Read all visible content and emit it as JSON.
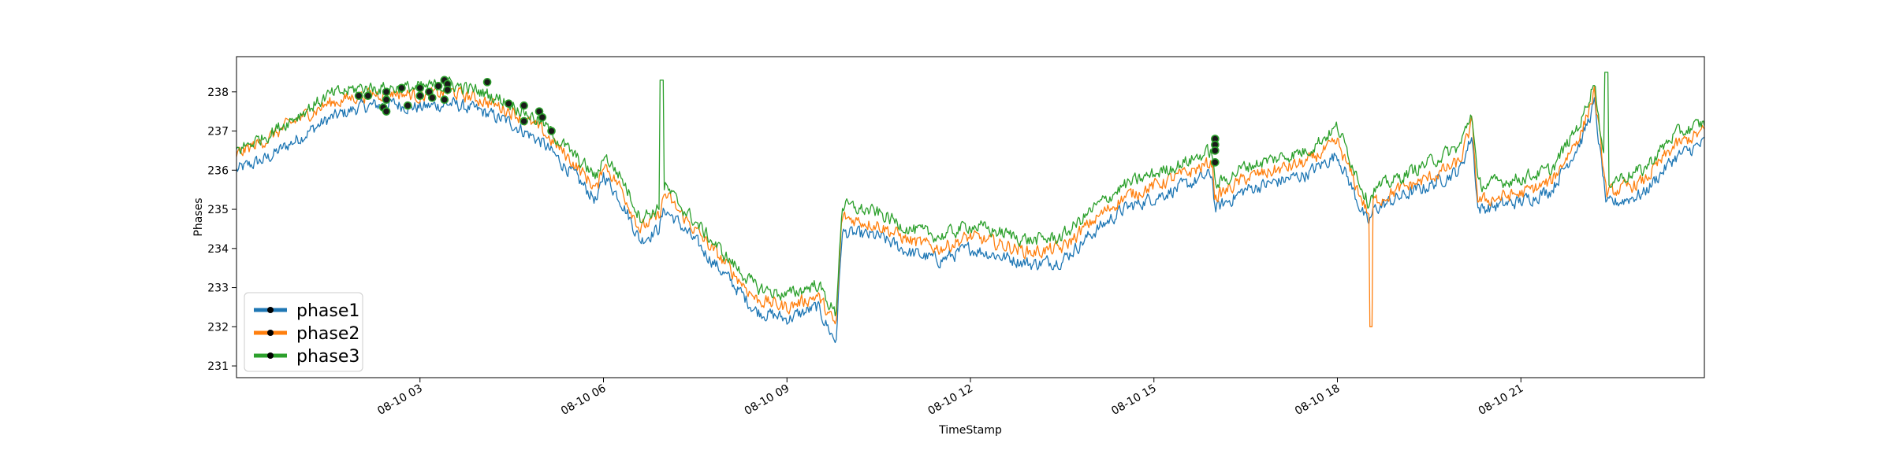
{
  "chart_data": {
    "type": "line",
    "title": "",
    "xlabel": "TimeStamp",
    "ylabel": "Phases",
    "x_start": "2020-08-10 00:00",
    "x_end": "2020-08-11 00:00",
    "xlim": [
      "2020-08-10 00:00",
      "2020-08-11 00:00"
    ],
    "ylim": [
      230.7,
      238.9
    ],
    "x_ticks": [
      {
        "value": "2020-08-10 03:00",
        "label": "08-10 03"
      },
      {
        "value": "2020-08-10 06:00",
        "label": "08-10 06"
      },
      {
        "value": "2020-08-10 09:00",
        "label": "08-10 09"
      },
      {
        "value": "2020-08-10 12:00",
        "label": "08-10 12"
      },
      {
        "value": "2020-08-10 15:00",
        "label": "08-10 15"
      },
      {
        "value": "2020-08-10 18:00",
        "label": "08-10 18"
      },
      {
        "value": "2020-08-10 21:00",
        "label": "08-10 21"
      }
    ],
    "y_ticks": [
      231,
      232,
      233,
      234,
      235,
      236,
      237,
      238
    ],
    "grid": false,
    "legend_position": "lower-left",
    "x_hours": [
      0,
      0.5,
      1,
      1.5,
      2,
      2.5,
      3,
      3.5,
      4,
      4.5,
      5,
      5.5,
      5.9,
      6,
      6.3,
      6.6,
      6.9,
      7.0,
      7.2,
      7.6,
      8,
      8.5,
      9,
      9.5,
      9.8,
      9.9,
      10.5,
      11,
      11.5,
      12,
      12.5,
      13,
      13.5,
      14,
      14.5,
      15,
      15.5,
      15.95,
      16.0,
      16.5,
      17,
      17.5,
      18.0,
      18.5,
      18.6,
      19,
      19.5,
      20,
      20.2,
      20.3,
      21,
      21.5,
      22,
      22.2,
      22.4,
      23,
      23.5,
      24
    ],
    "series": [
      {
        "name": "phase1",
        "color": "#1f77b4",
        "values": [
          236.0,
          236.3,
          236.8,
          237.3,
          237.6,
          237.7,
          237.6,
          237.7,
          237.5,
          237.2,
          236.7,
          235.9,
          235.2,
          235.9,
          235.2,
          234.2,
          234.5,
          235.0,
          234.7,
          234.0,
          233.3,
          232.4,
          232.2,
          232.5,
          231.6,
          234.4,
          234.3,
          233.9,
          233.7,
          234.0,
          233.8,
          233.6,
          233.7,
          234.4,
          235.0,
          235.3,
          235.6,
          235.9,
          235.0,
          235.5,
          235.7,
          235.9,
          236.4,
          234.6,
          235.0,
          235.3,
          235.6,
          236.0,
          236.9,
          235.0,
          235.2,
          235.5,
          236.8,
          237.7,
          235.1,
          235.4,
          236.3,
          236.7
        ]
      },
      {
        "name": "phase2",
        "color": "#ff7f0e",
        "values": [
          236.4,
          236.8,
          237.3,
          237.7,
          237.9,
          238.0,
          237.9,
          238.0,
          237.8,
          237.5,
          237.0,
          236.2,
          235.5,
          236.2,
          235.5,
          234.5,
          234.8,
          235.4,
          235.0,
          234.3,
          233.6,
          232.7,
          232.5,
          232.8,
          232.0,
          234.8,
          234.6,
          234.2,
          234.0,
          234.3,
          234.1,
          233.9,
          234.0,
          234.7,
          235.3,
          235.6,
          235.9,
          236.2,
          235.3,
          235.8,
          236.0,
          236.2,
          236.7,
          234.9,
          235.2,
          235.5,
          235.8,
          236.2,
          237.2,
          235.2,
          235.4,
          235.7,
          237.0,
          238.0,
          235.4,
          235.7,
          236.6,
          237.0
        ]
      },
      {
        "name": "phase3",
        "color": "#2ca02c",
        "values": [
          236.5,
          236.9,
          237.4,
          237.9,
          238.1,
          238.1,
          238.1,
          238.2,
          238.0,
          237.7,
          237.2,
          236.4,
          235.8,
          236.4,
          235.8,
          234.8,
          235.0,
          235.6,
          235.2,
          234.5,
          233.8,
          233.0,
          232.8,
          233.1,
          232.3,
          235.1,
          234.9,
          234.5,
          234.3,
          234.6,
          234.4,
          234.2,
          234.3,
          235.0,
          235.6,
          235.9,
          236.2,
          236.5,
          235.6,
          236.1,
          236.3,
          236.5,
          237.1,
          235.2,
          235.5,
          235.8,
          236.2,
          236.6,
          237.5,
          235.6,
          235.8,
          236.0,
          237.3,
          238.3,
          235.7,
          236.0,
          236.9,
          237.2
        ]
      }
    ],
    "spikes": [
      {
        "series": "phase3",
        "hour": 6.95,
        "value": 238.3
      },
      {
        "series": "phase2",
        "hour": 18.55,
        "value": 232.0
      },
      {
        "series": "phase3",
        "hour": 22.4,
        "value": 238.5
      }
    ],
    "markers": [
      {
        "hour": 2.0,
        "value": 237.9
      },
      {
        "hour": 2.15,
        "value": 237.9
      },
      {
        "hour": 2.4,
        "value": 237.6
      },
      {
        "hour": 2.45,
        "value": 237.8
      },
      {
        "hour": 2.45,
        "value": 238.0
      },
      {
        "hour": 2.45,
        "value": 237.5
      },
      {
        "hour": 2.7,
        "value": 238.1
      },
      {
        "hour": 2.8,
        "value": 237.65
      },
      {
        "hour": 3.0,
        "value": 238.1
      },
      {
        "hour": 3.0,
        "value": 237.9
      },
      {
        "hour": 3.15,
        "value": 238.0
      },
      {
        "hour": 3.2,
        "value": 237.85
      },
      {
        "hour": 3.3,
        "value": 238.15
      },
      {
        "hour": 3.4,
        "value": 238.3
      },
      {
        "hour": 3.45,
        "value": 238.2
      },
      {
        "hour": 3.45,
        "value": 238.05
      },
      {
        "hour": 3.4,
        "value": 237.8
      },
      {
        "hour": 4.1,
        "value": 238.25
      },
      {
        "hour": 4.45,
        "value": 237.7
      },
      {
        "hour": 4.7,
        "value": 237.65
      },
      {
        "hour": 4.7,
        "value": 237.25
      },
      {
        "hour": 4.95,
        "value": 237.5
      },
      {
        "hour": 5.0,
        "value": 237.35
      },
      {
        "hour": 5.15,
        "value": 237.0
      },
      {
        "hour": 16.0,
        "value": 236.8
      },
      {
        "hour": 16.0,
        "value": 236.65
      },
      {
        "hour": 16.0,
        "value": 236.5
      },
      {
        "hour": 16.0,
        "value": 236.2
      }
    ],
    "legend": [
      {
        "name": "phase1",
        "color": "#1f77b4"
      },
      {
        "name": "phase2",
        "color": "#ff7f0e"
      },
      {
        "name": "phase3",
        "color": "#2ca02c"
      }
    ]
  }
}
